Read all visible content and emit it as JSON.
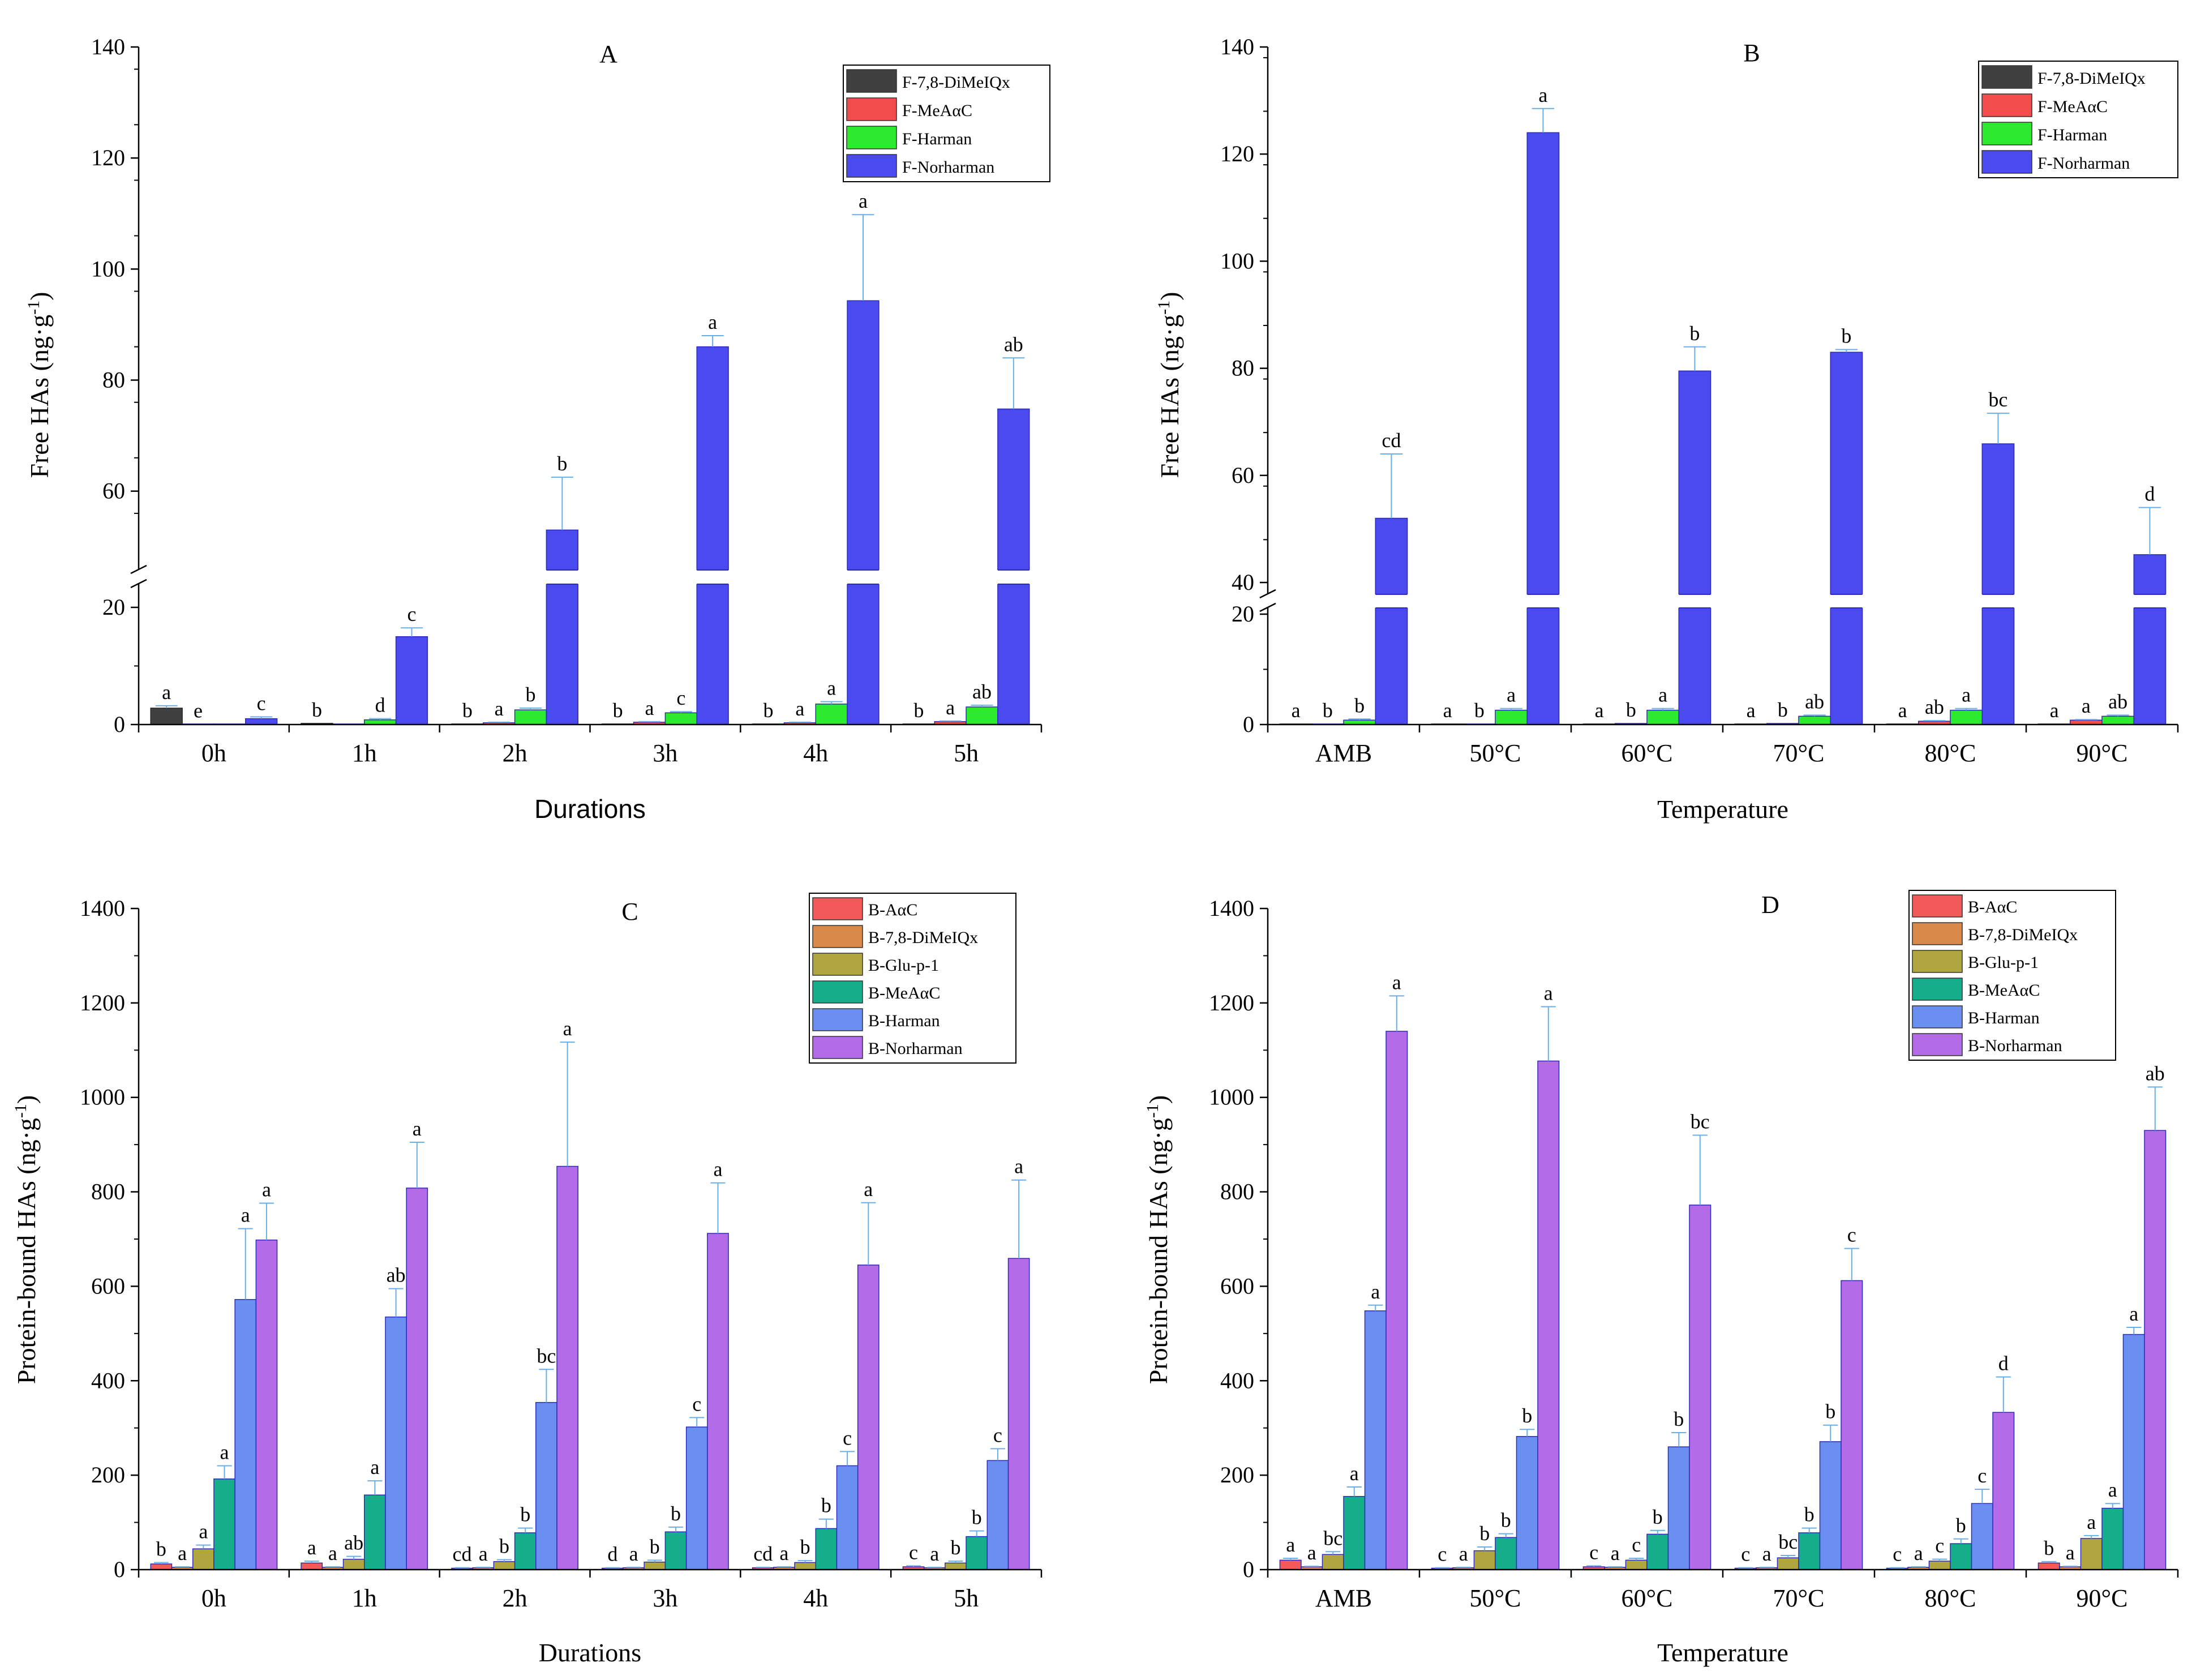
{
  "chart_data": [
    {
      "panel": "A",
      "type": "bar",
      "title": "A",
      "xlabel": "Durations",
      "ylabel": "Free HAs (ng·g",
      "ylabel_sup": "-1",
      "ylabel_close": ")",
      "axis_break": true,
      "lower_range": [
        0,
        20
      ],
      "upper_range": [
        46,
        140
      ],
      "lower_ticks": [
        "0",
        "20"
      ],
      "upper_ticks": [
        "60",
        "80",
        "100",
        "120",
        "140"
      ],
      "categories": [
        "0h",
        "1h",
        "2h",
        "3h",
        "4h",
        "5h"
      ],
      "legend_position": "top-right",
      "series": [
        {
          "name": "F-7,8-DiMeIQx",
          "color": "#404040",
          "values": [
            2.8,
            0.2,
            0.1,
            0.1,
            0.1,
            0.1
          ],
          "errors": [
            0.4,
            0,
            0,
            0,
            0,
            0
          ],
          "letters": [
            "a",
            "b",
            "b",
            "b",
            "b",
            "b"
          ]
        },
        {
          "name": "F-MeAαC",
          "color": "#f24d4d",
          "values": [
            0.05,
            0.05,
            0.3,
            0.4,
            0.3,
            0.5
          ],
          "errors": [
            0,
            0,
            0.1,
            0.1,
            0.1,
            0.1
          ],
          "letters": [
            "e",
            "",
            "a",
            "a",
            "a",
            "a"
          ]
        },
        {
          "name": "F-Harman",
          "color": "#2eea2e",
          "values": [
            0.05,
            0.8,
            2.5,
            2.0,
            3.5,
            3.0
          ],
          "errors": [
            0,
            0.2,
            0.3,
            0.2,
            0.4,
            0.3
          ],
          "letters": [
            "",
            "d",
            "b",
            "c",
            "a",
            "ab"
          ]
        },
        {
          "name": "F-Norharman",
          "color": "#4a4aef",
          "values": [
            1.0,
            15.0,
            53.0,
            86.0,
            94.3,
            74.8
          ],
          "errors": [
            0.3,
            1.5,
            9.5,
            2.0,
            15.5,
            9.2
          ],
          "letters": [
            "c",
            "c",
            "b",
            "a",
            "a",
            "ab"
          ]
        }
      ]
    },
    {
      "panel": "B",
      "type": "bar",
      "title": "B",
      "xlabel": "Temperature",
      "ylabel": "Free HAs (ng·g",
      "ylabel_sup": "-1",
      "ylabel_close": ")",
      "axis_break": true,
      "lower_range": [
        0,
        20
      ],
      "upper_range": [
        38,
        140
      ],
      "lower_ticks": [
        "0",
        "20"
      ],
      "upper_ticks": [
        "40",
        "60",
        "80",
        "100",
        "120",
        "140"
      ],
      "categories": [
        "AMB",
        "50°C",
        "60°C",
        "70°C",
        "80°C",
        "90°C"
      ],
      "legend_position": "top-right",
      "series": [
        {
          "name": "F-7,8-DiMeIQx",
          "color": "#404040",
          "values": [
            0.1,
            0.1,
            0.1,
            0.1,
            0.1,
            0.1
          ],
          "errors": [
            0,
            0,
            0,
            0,
            0,
            0
          ],
          "letters": [
            "a",
            "a",
            "a",
            "a",
            "a",
            "a"
          ]
        },
        {
          "name": "F-MeAαC",
          "color": "#f24d4d",
          "values": [
            0.1,
            0.1,
            0.2,
            0.2,
            0.6,
            0.8
          ],
          "errors": [
            0,
            0,
            0,
            0,
            0.1,
            0.1
          ],
          "letters": [
            "b",
            "b",
            "b",
            "b",
            "ab",
            "a"
          ]
        },
        {
          "name": "F-Harman",
          "color": "#2eea2e",
          "values": [
            0.8,
            2.6,
            2.6,
            1.5,
            2.6,
            1.5
          ],
          "errors": [
            0.2,
            0.3,
            0.3,
            0.2,
            0.3,
            0.2
          ],
          "letters": [
            "b",
            "a",
            "a",
            "ab",
            "a",
            "ab"
          ]
        },
        {
          "name": "F-Norharman",
          "color": "#4a4aef",
          "values": [
            52.0,
            124.0,
            79.5,
            83.0,
            65.9,
            45.2
          ],
          "errors": [
            12.0,
            4.5,
            4.5,
            0.5,
            5.7,
            8.8
          ],
          "letters": [
            "cd",
            "a",
            "b",
            "b",
            "bc",
            "d"
          ]
        }
      ]
    },
    {
      "panel": "C",
      "type": "bar",
      "title": "C",
      "xlabel": "Durations",
      "ylabel": "Protein-bound HAs (ng·g",
      "ylabel_sup": "-1",
      "ylabel_close": ")",
      "axis_break": false,
      "ylim": [
        0,
        1400
      ],
      "yticks": [
        "0",
        "200",
        "400",
        "600",
        "800",
        "1000",
        "1200",
        "1400"
      ],
      "categories": [
        "0h",
        "1h",
        "2h",
        "3h",
        "4h",
        "5h"
      ],
      "legend_position": "top-right",
      "series": [
        {
          "name": "B-AαC",
          "color": "#f25a5a",
          "values": [
            12,
            14,
            3,
            3,
            4,
            6
          ],
          "errors": [
            3,
            4,
            1,
            1,
            1,
            2
          ],
          "letters": [
            "b",
            "a",
            "cd",
            "d",
            "cd",
            "c"
          ]
        },
        {
          "name": "B-7,8-DiMeIQx",
          "color": "#d98a4a",
          "values": [
            5,
            5,
            4,
            4,
            5,
            4
          ],
          "errors": [
            1,
            1,
            1,
            1,
            1,
            1
          ],
          "letters": [
            "a",
            "a",
            "a",
            "a",
            "a",
            "a"
          ]
        },
        {
          "name": "B-Glu-p-1",
          "color": "#b0a640",
          "values": [
            44,
            22,
            17,
            16,
            15,
            14
          ],
          "errors": [
            8,
            6,
            4,
            4,
            4,
            4
          ],
          "letters": [
            "a",
            "ab",
            "b",
            "b",
            "b",
            "b"
          ]
        },
        {
          "name": "B-MeAαC",
          "color": "#15ad8a",
          "values": [
            192,
            158,
            78,
            80,
            87,
            70
          ],
          "errors": [
            28,
            30,
            10,
            10,
            20,
            12
          ],
          "letters": [
            "a",
            "a",
            "b",
            "b",
            "b",
            "b"
          ]
        },
        {
          "name": "B-Harman",
          "color": "#6b8ff0",
          "values": [
            572,
            535,
            354,
            302,
            220,
            231
          ],
          "errors": [
            150,
            60,
            70,
            20,
            30,
            25
          ],
          "letters": [
            "a",
            "ab",
            "bc",
            "c",
            "c",
            "c"
          ]
        },
        {
          "name": "B-Norharman",
          "color": "#b46be8",
          "values": [
            698,
            808,
            854,
            712,
            645,
            659
          ],
          "errors": [
            78,
            97,
            263,
            107,
            132,
            166
          ],
          "letters": [
            "a",
            "a",
            "a",
            "a",
            "a",
            "a"
          ]
        }
      ]
    },
    {
      "panel": "D",
      "type": "bar",
      "title": "D",
      "xlabel": "Temperature",
      "ylabel": "Protein-bound HAs (ng·g",
      "ylabel_sup": "-1",
      "ylabel_close": ")",
      "axis_break": false,
      "ylim": [
        0,
        1400
      ],
      "yticks": [
        "0",
        "200",
        "400",
        "600",
        "800",
        "1000",
        "1200",
        "1400"
      ],
      "categories": [
        "AMB",
        "50°C",
        "60°C",
        "70°C",
        "80°C",
        "90°C"
      ],
      "legend_position": "top-right",
      "series": [
        {
          "name": "B-AαC",
          "color": "#f25a5a",
          "values": [
            20,
            3,
            6,
            3,
            3,
            14
          ],
          "errors": [
            4,
            1,
            2,
            1,
            1,
            3
          ],
          "letters": [
            "a",
            "c",
            "c",
            "c",
            "c",
            "b"
          ]
        },
        {
          "name": "B-7,8-DiMeIQx",
          "color": "#d98a4a",
          "values": [
            6,
            4,
            5,
            4,
            5,
            6
          ],
          "errors": [
            1,
            1,
            1,
            1,
            1,
            1
          ],
          "letters": [
            "a",
            "a",
            "a",
            "a",
            "a",
            "a"
          ]
        },
        {
          "name": "B-Glu-p-1",
          "color": "#b0a640",
          "values": [
            32,
            40,
            20,
            25,
            18,
            66
          ],
          "errors": [
            6,
            8,
            4,
            5,
            4,
            6
          ],
          "letters": [
            "bc",
            "b",
            "c",
            "bc",
            "c",
            "a"
          ]
        },
        {
          "name": "B-MeAαC",
          "color": "#15ad8a",
          "values": [
            155,
            68,
            75,
            78,
            55,
            130
          ],
          "errors": [
            20,
            8,
            8,
            10,
            10,
            10
          ],
          "letters": [
            "a",
            "b",
            "b",
            "b",
            "b",
            "a"
          ]
        },
        {
          "name": "B-Harman",
          "color": "#6b8ff0",
          "values": [
            548,
            282,
            260,
            271,
            140,
            498
          ],
          "errors": [
            12,
            15,
            30,
            35,
            30,
            15
          ],
          "letters": [
            "a",
            "b",
            "b",
            "b",
            "c",
            "a"
          ]
        },
        {
          "name": "B-Norharman",
          "color": "#b46be8",
          "values": [
            1140,
            1077,
            772,
            612,
            333,
            930
          ],
          "errors": [
            75,
            115,
            148,
            68,
            75,
            92
          ],
          "letters": [
            "a",
            "a",
            "bc",
            "c",
            "d",
            "ab"
          ]
        }
      ]
    }
  ]
}
